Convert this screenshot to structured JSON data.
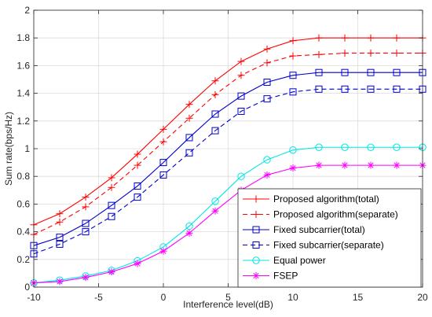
{
  "chart_data": {
    "type": "line",
    "title": "",
    "xlabel": "Interference level(dB)",
    "ylabel": "Sum rate(bps/Hz)",
    "xlim": [
      -10,
      20
    ],
    "ylim": [
      0,
      2
    ],
    "xticks": [
      -10,
      -5,
      0,
      5,
      10,
      15,
      20
    ],
    "yticks": [
      0,
      0.2,
      0.4,
      0.6,
      0.8,
      1,
      1.2,
      1.4,
      1.6,
      1.8,
      2
    ],
    "xtick_labels": [
      "-10",
      "-5",
      "0",
      "5",
      "10",
      "15",
      "20"
    ],
    "ytick_labels": [
      "0",
      "0.2",
      "0.4",
      "0.6",
      "0.8",
      "1",
      "1.2",
      "1.4",
      "1.6",
      "1.8",
      "2"
    ],
    "grid": true,
    "legend_position": "bottom-right",
    "x": [
      -10,
      -8,
      -6,
      -4,
      -2,
      0,
      2,
      4,
      6,
      8,
      10,
      12,
      14,
      16,
      18,
      20
    ],
    "series": [
      {
        "name": "Proposed algorithm(total)",
        "color": "#ff0000",
        "line_style": "solid",
        "marker": "plus",
        "values": [
          0.45,
          0.53,
          0.65,
          0.79,
          0.96,
          1.14,
          1.32,
          1.49,
          1.63,
          1.72,
          1.78,
          1.8,
          1.8,
          1.8,
          1.8,
          1.8
        ]
      },
      {
        "name": "Proposed algorithm(separate)",
        "color": "#ff0000",
        "line_style": "dashed",
        "marker": "plus",
        "values": [
          0.38,
          0.47,
          0.58,
          0.72,
          0.88,
          1.05,
          1.22,
          1.39,
          1.53,
          1.62,
          1.67,
          1.68,
          1.69,
          1.69,
          1.69,
          1.69
        ]
      },
      {
        "name": "Fixed subcarrier(total)",
        "color": "#0000cc",
        "line_style": "solid",
        "marker": "square",
        "values": [
          0.3,
          0.36,
          0.46,
          0.59,
          0.73,
          0.9,
          1.08,
          1.25,
          1.38,
          1.48,
          1.53,
          1.55,
          1.55,
          1.55,
          1.55,
          1.55
        ]
      },
      {
        "name": "Fixed subcarrier(separate)",
        "color": "#0000cc",
        "line_style": "dashed",
        "marker": "square",
        "values": [
          0.24,
          0.31,
          0.4,
          0.51,
          0.65,
          0.81,
          0.97,
          1.13,
          1.27,
          1.36,
          1.41,
          1.43,
          1.43,
          1.43,
          1.43,
          1.43
        ]
      },
      {
        "name": "Equal power",
        "color": "#00e5e5",
        "line_style": "solid",
        "marker": "circle",
        "values": [
          0.03,
          0.05,
          0.08,
          0.12,
          0.19,
          0.29,
          0.44,
          0.62,
          0.8,
          0.92,
          0.99,
          1.01,
          1.01,
          1.01,
          1.01,
          1.01
        ]
      },
      {
        "name": "FSEP",
        "color": "#ff00ff",
        "line_style": "solid",
        "marker": "asterisk",
        "values": [
          0.03,
          0.04,
          0.07,
          0.11,
          0.17,
          0.26,
          0.39,
          0.55,
          0.7,
          0.81,
          0.86,
          0.88,
          0.88,
          0.88,
          0.88,
          0.88
        ]
      }
    ]
  }
}
